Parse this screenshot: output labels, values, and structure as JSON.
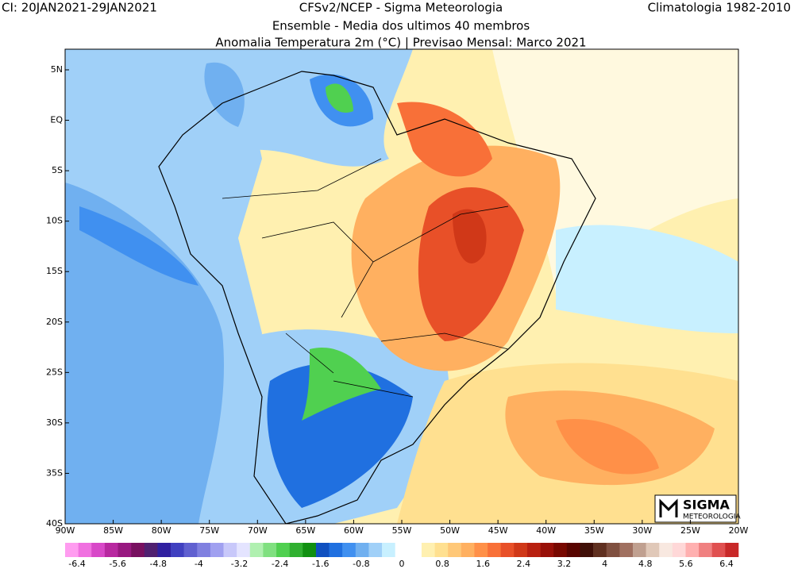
{
  "header": {
    "left": "CI: 20JAN2021-29JAN2021",
    "title": "CFSv2/NCEP - Sigma Meteorologia",
    "right": "Climatologia 1982-2010",
    "subtitle": "Ensemble - Media dos ultimos 40 membros",
    "subtitle2": "Anomalia Temperatura 2m (°C) | Previsao Mensal: Marco 2021"
  },
  "map": {
    "lon_labels": [
      "90W",
      "85W",
      "80W",
      "75W",
      "70W",
      "65W",
      "60W",
      "55W",
      "50W",
      "45W",
      "40W",
      "35W",
      "30W",
      "25W",
      "20W"
    ],
    "lat_labels": [
      "5N",
      "EQ",
      "5S",
      "10S",
      "15S",
      "20S",
      "25S",
      "30S",
      "35S",
      "40S"
    ]
  },
  "colorbar": {
    "colors": [
      "#ff9cf0",
      "#f070e0",
      "#d848c8",
      "#b828a0",
      "#981880",
      "#781060",
      "#502070",
      "#3020a0",
      "#4040c0",
      "#6060d0",
      "#8080e0",
      "#a0a0f0",
      "#c8c8fa",
      "#e4e4ff",
      "#b0f0b0",
      "#80e080",
      "#50d050",
      "#30b030",
      "#109010",
      "#1050c0",
      "#2070e0",
      "#4090f0",
      "#70b0f0",
      "#a0d0f8",
      "#c8f0ff",
      "#ffffff",
      "#ffffff",
      "#fff0b0",
      "#ffe090",
      "#ffc878",
      "#ffb060",
      "#ff9048",
      "#f87038",
      "#e85028",
      "#d03818",
      "#b82010",
      "#981008",
      "#780800",
      "#580400",
      "#401008",
      "#603020",
      "#805040",
      "#a07060",
      "#c0a090",
      "#e0c8b8",
      "#f8e8e0",
      "#ffd8d8",
      "#ffb0b0",
      "#f08080",
      "#e05050",
      "#c82828"
    ],
    "labels": [
      -6.4,
      -5.6,
      -4.8,
      -4,
      -3.2,
      -2.4,
      -1.6,
      -0.8,
      0,
      0.8,
      1.6,
      2.4,
      3.2,
      4,
      4.8,
      5.6,
      6.4
    ]
  },
  "logo": {
    "name": "SIGMA",
    "tagline": "METEOROLOGIA"
  }
}
